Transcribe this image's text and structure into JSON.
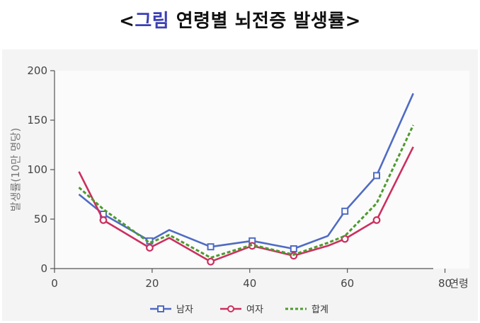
{
  "title": {
    "prefix": "<",
    "accent": "그림",
    "main": " 연령별 뇌전증 발생률>"
  },
  "colors": {
    "accent": "#3b3fb5",
    "male": "#4f6bc4",
    "female": "#cc2f5f",
    "total": "#4d9a2e",
    "plot_bg": "#fbfbfb",
    "panel_bg": "#f4f4f4"
  },
  "chart_data": {
    "type": "line",
    "xlabel": "연령",
    "ylabel": "발생률(10만 명당)",
    "xlim": [
      0,
      85
    ],
    "ylim": [
      0,
      200
    ],
    "xticks": [
      0,
      20,
      40,
      60,
      80
    ],
    "yticks": [
      0,
      50,
      100,
      150,
      200
    ],
    "grid": false,
    "legend_position": "bottom",
    "series": [
      {
        "name": "남자",
        "color": "#4f6bc4",
        "marker": "square",
        "dash": "solid",
        "x": [
          5,
          10,
          19.5,
          23.5,
          32,
          40.5,
          49,
          56,
          59.5,
          66,
          73.5
        ],
        "y": [
          75,
          55,
          28,
          39,
          22,
          28,
          20,
          33,
          58,
          94,
          177
        ],
        "marker_indices": [
          1,
          2,
          4,
          5,
          6,
          8,
          9
        ]
      },
      {
        "name": "여자",
        "color": "#cc2f5f",
        "marker": "circle",
        "dash": "solid",
        "x": [
          5,
          10,
          19.5,
          23.5,
          32,
          40.5,
          49,
          56,
          59.5,
          66,
          73.5
        ],
        "y": [
          98,
          49,
          21,
          31,
          7,
          23,
          13,
          23,
          30,
          49,
          123
        ],
        "marker_indices": [
          1,
          2,
          4,
          5,
          6,
          8,
          9
        ]
      },
      {
        "name": "합계",
        "color": "#4d9a2e",
        "marker": "none",
        "dash": "dotted",
        "x": [
          5,
          10,
          19.5,
          23.5,
          32,
          40.5,
          49,
          56,
          59.5,
          66,
          73.5
        ],
        "y": [
          82,
          60,
          26,
          34,
          11,
          24,
          14,
          26,
          33,
          66,
          145
        ],
        "marker_indices": []
      }
    ]
  }
}
